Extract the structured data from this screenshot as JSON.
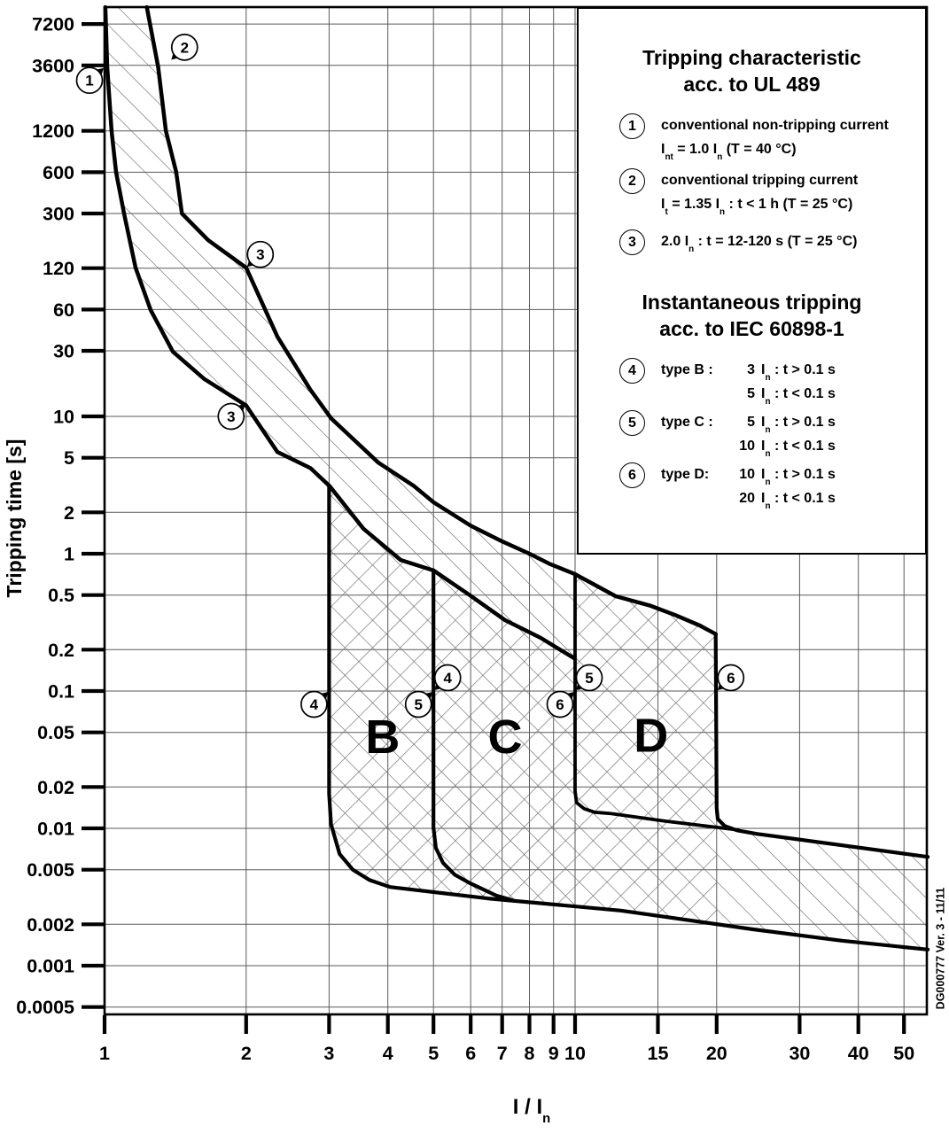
{
  "axes": {
    "x": {
      "label": "I / I_{n}",
      "scale": "log",
      "range": [
        1,
        56
      ]
    },
    "y": {
      "label": "Tripping time [s]",
      "scale": "log",
      "range": [
        0.0005,
        9550
      ]
    }
  },
  "legend": {
    "ul": {
      "title1": "Tripping characteristic",
      "title2": "acc. to UL 489",
      "items": [
        {
          "n": "1",
          "lines": [
            "conventional non-tripping current",
            "I_{nt}  = 1.0 I_{n}   (T = 40 °C)"
          ]
        },
        {
          "n": "2",
          "lines": [
            "conventional tripping current",
            "I_{t}  = 1.35 I_{n} :  t  < 1 h (T = 25 °C)"
          ]
        },
        {
          "n": "3",
          "lines": [
            "2.0 I_{n} :  t = 12-120 s (T = 25 °C)"
          ]
        }
      ]
    },
    "iec": {
      "title1": "Instantaneous tripping",
      "title2": "acc. to IEC 60898-1",
      "items": [
        {
          "n": "4",
          "prefix": "type B :",
          "lines": [
            [
              "3",
              "I_{n}  : t > 0.1 s"
            ],
            [
              "5",
              "I_{n}  : t < 0.1 s"
            ]
          ]
        },
        {
          "n": "5",
          "prefix": "type C :",
          "lines": [
            [
              "5",
              "I_{n}  : t > 0.1 s"
            ],
            [
              "10",
              "I_{n}  : t < 0.1 s"
            ]
          ]
        },
        {
          "n": "6",
          "prefix": "type D:",
          "lines": [
            [
              "10",
              "I_{n}  : t > 0.1 s"
            ],
            [
              "20",
              "I_{n}  : t < 0.1 s"
            ]
          ]
        }
      ]
    }
  },
  "document_ref": "DG000777 Ver. 3 - 11/11",
  "chart_data": {
    "type": "line",
    "scale": "log-log",
    "xlabel": "I / I_n",
    "ylabel": "Tripping time [s]",
    "grid": true,
    "x_ticks": {
      "values": [
        1,
        2,
        3,
        4,
        5,
        6,
        7,
        8,
        9,
        10,
        15,
        20,
        30,
        40,
        50
      ],
      "labels": [
        "1",
        "2",
        "3",
        "4",
        "5",
        "6",
        "7",
        "8",
        "9",
        "10",
        "15",
        "20",
        "30",
        "40",
        "50"
      ]
    },
    "y_ticks": {
      "values": [
        7200,
        3600,
        1200,
        600,
        300,
        120,
        60,
        30,
        10,
        5,
        2,
        1,
        0.5,
        0.2,
        0.1,
        0.05,
        0.02,
        0.01,
        0.005,
        0.002,
        0.001,
        0.0005
      ],
      "labels": [
        "7200",
        "3600",
        "1200",
        "600",
        "300",
        "120",
        "60",
        "30",
        "10",
        "5",
        "2",
        "1",
        "0.5",
        "0.2",
        "0.1",
        "0.05",
        "0.02",
        "0.01",
        "0.005",
        "0.002",
        "0.001",
        "0.0005"
      ]
    },
    "series": [
      {
        "name": "ul489_upper_limit",
        "role": "max tripping time boundary",
        "width": 4.5,
        "points": [
          [
            1.23,
            9550
          ],
          [
            1.3,
            3500
          ],
          [
            1.35,
            1200
          ],
          [
            1.42,
            600
          ],
          [
            1.46,
            300
          ],
          [
            1.66,
            192
          ],
          [
            2.0,
            121
          ],
          [
            2.33,
            38
          ],
          [
            2.74,
            15.6
          ],
          [
            3.03,
            9.7
          ],
          [
            3.82,
            4.6
          ],
          [
            4.55,
            3.1
          ],
          [
            5.0,
            2.37
          ],
          [
            6.0,
            1.6
          ],
          [
            7.0,
            1.23
          ],
          [
            8.0,
            1.0
          ],
          [
            8.85,
            0.84
          ],
          [
            10.0,
            0.71
          ],
          [
            12.2,
            0.49
          ],
          [
            14.4,
            0.42
          ],
          [
            16.4,
            0.355
          ],
          [
            18.4,
            0.3
          ],
          [
            19.9,
            0.26
          ]
        ]
      },
      {
        "name": "ul489_lower_limit",
        "role": "min tripping time boundary",
        "width": 4.5,
        "points": [
          [
            1.004,
            9550
          ],
          [
            1.013,
            3500
          ],
          [
            1.035,
            1200
          ],
          [
            1.058,
            600
          ],
          [
            1.1,
            300
          ],
          [
            1.164,
            121
          ],
          [
            1.253,
            59.5
          ],
          [
            1.397,
            29.6
          ],
          [
            1.63,
            18.7
          ],
          [
            2.0,
            12.0
          ],
          [
            2.33,
            5.5
          ],
          [
            2.74,
            4.2
          ],
          [
            3.01,
            3.1
          ],
          [
            3.55,
            1.52
          ],
          [
            4.26,
            0.9
          ],
          [
            5.0,
            0.755
          ],
          [
            5.97,
            0.5
          ],
          [
            7.1,
            0.328
          ],
          [
            8.45,
            0.244
          ],
          [
            9.96,
            0.173
          ]
        ]
      },
      {
        "name": "boundary_3In_type_B",
        "role": "3 In instantaneous boundary + min clearing envelope",
        "width": 4.2,
        "points": [
          [
            3.0,
            3.1
          ],
          [
            3.0,
            0.0179
          ],
          [
            3.03,
            0.0107
          ],
          [
            3.16,
            0.0065
          ],
          [
            3.37,
            0.005
          ],
          [
            3.66,
            0.0042
          ],
          [
            4.04,
            0.00374
          ],
          [
            6.52,
            0.00309
          ],
          [
            12.5,
            0.00252
          ],
          [
            23.9,
            0.00184
          ],
          [
            36.9,
            0.00152
          ],
          [
            56.2,
            0.00131
          ]
        ]
      },
      {
        "name": "boundary_5In_type_B_C",
        "role": "5 In instantaneous boundary",
        "width": 4.2,
        "points": [
          [
            5.0,
            0.755
          ],
          [
            5.0,
            0.0101
          ],
          [
            5.06,
            0.0072
          ],
          [
            5.24,
            0.0056
          ],
          [
            5.55,
            0.0046
          ],
          [
            5.97,
            0.004
          ],
          [
            6.8,
            0.00324
          ],
          [
            7.41,
            0.00297
          ]
        ]
      },
      {
        "name": "boundary_10In_type_C_D",
        "role": "10 In instantaneous boundary",
        "width": 3.8,
        "points": [
          [
            10.0,
            0.71
          ],
          [
            10.0,
            0.0187
          ],
          [
            10.07,
            0.0154
          ],
          [
            10.45,
            0.0139
          ],
          [
            11.0,
            0.0131
          ],
          [
            11.95,
            0.0128
          ],
          [
            15.5,
            0.0113
          ],
          [
            22.2,
            0.00975
          ]
        ]
      },
      {
        "name": "boundary_20In_type_D",
        "role": "20 In instantaneous boundary + max clearing envelope",
        "width": 4.2,
        "points": [
          [
            19.9,
            0.26
          ],
          [
            20.0,
            0.0141
          ],
          [
            20.1,
            0.0117
          ],
          [
            20.8,
            0.0104
          ],
          [
            22.1,
            0.00966
          ],
          [
            24.4,
            0.0091
          ],
          [
            56.2,
            0.0062
          ]
        ]
      }
    ],
    "regions": [
      {
        "label": "B",
        "i": 3.9,
        "t": 0.047
      },
      {
        "label": "C",
        "i": 7.1,
        "t": 0.047
      },
      {
        "label": "D",
        "i": 14.5,
        "t": 0.048
      }
    ],
    "callouts": [
      {
        "n": "1",
        "i": 1.0,
        "t": 3500,
        "side": "lb"
      },
      {
        "n": "2",
        "i": 1.38,
        "t": 3900,
        "side": "ra"
      },
      {
        "n": "3",
        "i": 2.0,
        "t": 121,
        "side": "ra"
      },
      {
        "n": "3",
        "i": 2.0,
        "t": 12.5,
        "side": "lb"
      },
      {
        "n": "4",
        "i": 3.0,
        "t": 0.1,
        "side": "lb"
      },
      {
        "n": "4",
        "i": 5.0,
        "t": 0.1,
        "side": "ra"
      },
      {
        "n": "5",
        "i": 5.0,
        "t": 0.1,
        "side": "lb"
      },
      {
        "n": "5",
        "i": 10.0,
        "t": 0.1,
        "side": "ra"
      },
      {
        "n": "6",
        "i": 10.0,
        "t": 0.1,
        "side": "lb"
      },
      {
        "n": "6",
        "i": 20.0,
        "t": 0.1,
        "side": "ra"
      }
    ],
    "colors": {
      "curve": "#000000",
      "grid": "#5a5a5a",
      "hatch": "#6f6f6f",
      "background": "#ffffff"
    }
  }
}
